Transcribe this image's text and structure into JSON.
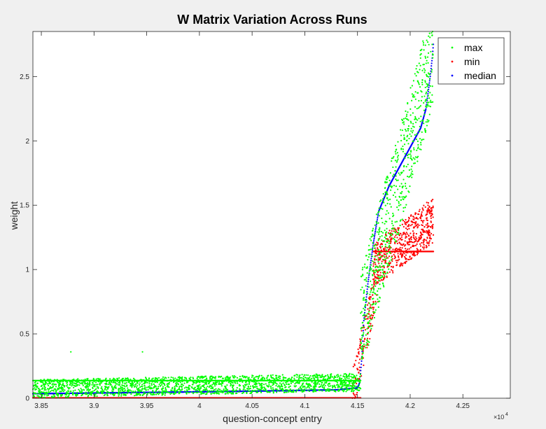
{
  "chart_data": {
    "type": "scatter",
    "title": "W Matrix Variation Across Runs",
    "xlabel": "question-concept entry",
    "ylabel": "weight",
    "x_exponent_label": "×10",
    "x_exponent_power": "4",
    "xlim": [
      38420,
      42950
    ],
    "ylim": [
      0,
      2.85
    ],
    "x_ticks": [
      38500,
      39000,
      39500,
      40000,
      40500,
      41000,
      41500,
      42000,
      42500
    ],
    "x_tick_labels": [
      "3.85",
      "3.9",
      "3.95",
      "4",
      "4.05",
      "4.1",
      "4.15",
      "4.2",
      "4.25"
    ],
    "y_ticks": [
      0,
      0.5,
      1,
      1.5,
      2,
      2.5
    ],
    "y_tick_labels": [
      "0",
      "0.5",
      "1",
      "1.5",
      "2",
      "2.5"
    ],
    "grid": false,
    "legend_position": "top-right",
    "series": [
      {
        "name": "max",
        "color": "#00ff00",
        "segments": [
          {
            "x_start": 38420,
            "x_end": 41530,
            "base_start": 0.06,
            "base_end": 0.11,
            "spread": 0.14,
            "count": 2000
          },
          {
            "x_start": 38420,
            "x_end": 41530,
            "constant": 0.137
          },
          {
            "x_start": 41530,
            "x_end": 42220,
            "base_start": 0.5,
            "base_end": 2.6,
            "spread": 0.8,
            "count": 700
          }
        ],
        "outliers": [
          {
            "x": 38780,
            "y": 0.36
          },
          {
            "x": 39460,
            "y": 0.36
          }
        ]
      },
      {
        "name": "min",
        "color": "#ff0000",
        "segments": [
          {
            "x_start": 38420,
            "x_end": 41530,
            "constant": 0.003
          },
          {
            "x_start": 41450,
            "x_end": 41700,
            "base_start": 0.0,
            "base_end": 0.9,
            "spread": 0.35,
            "count": 150
          },
          {
            "x_start": 41650,
            "x_end": 42220,
            "base_start": 1.0,
            "base_end": 1.35,
            "spread": 0.35,
            "count": 600
          },
          {
            "x_start": 41650,
            "x_end": 42220,
            "constant": 1.14
          }
        ]
      },
      {
        "name": "median",
        "color": "#0000ff",
        "curve": {
          "x_start": 38420,
          "x_end": 42220,
          "knots_x": [
            38420,
            39500,
            40500,
            41300,
            41500,
            41520,
            41540,
            41560,
            41600,
            41650,
            41700,
            41750,
            41800,
            41900,
            42000,
            42100,
            42150,
            42190,
            42210,
            42220
          ],
          "knots_y": [
            0.035,
            0.045,
            0.055,
            0.065,
            0.08,
            0.12,
            0.3,
            0.6,
            0.9,
            1.2,
            1.45,
            1.55,
            1.65,
            1.8,
            1.95,
            2.1,
            2.25,
            2.5,
            2.65,
            2.75
          ]
        }
      }
    ]
  }
}
